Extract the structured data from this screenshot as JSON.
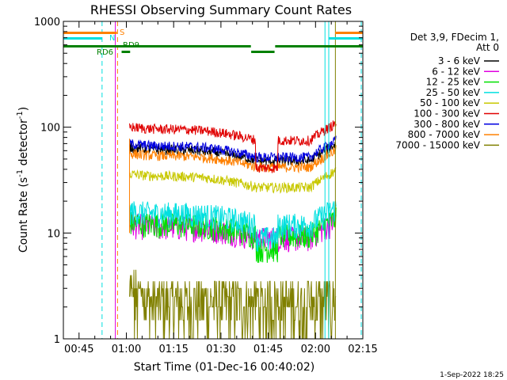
{
  "chart_data": {
    "type": "line",
    "title": "RHESSI Observing Summary Count Rates",
    "xlabel": "Start Time (01-Dec-16 00:40:02)",
    "ylabel_main": "Count Rate (s",
    "ylabel_sup1": "-1",
    "ylabel_mid": " detector",
    "ylabel_sup2": "-1",
    "ylabel_end": ")",
    "yscale": "log",
    "ylim": [
      1,
      1000
    ],
    "xlim_minutes": [
      40.03,
      135
    ],
    "x_ticks": [
      {
        "label": "00:45",
        "min": 45
      },
      {
        "label": "01:00",
        "min": 60
      },
      {
        "label": "01:15",
        "min": 75
      },
      {
        "label": "01:30",
        "min": 90
      },
      {
        "label": "01:45",
        "min": 105
      },
      {
        "label": "02:00",
        "min": 120
      },
      {
        "label": "02:15",
        "min": 135
      }
    ],
    "y_ticks": [
      {
        "label": "1",
        "v": 1
      },
      {
        "label": "10",
        "v": 10
      },
      {
        "label": "100",
        "v": 100
      },
      {
        "label": "1000",
        "v": 1000
      }
    ],
    "legend_header": [
      "Det 3,9, FDecim 1,",
      "Att 0"
    ],
    "series": [
      {
        "name": "3 - 6 keV",
        "color": "#000000",
        "base": 48
      },
      {
        "name": "6 - 12 keV",
        "color": "#e000e0",
        "base": 9
      },
      {
        "name": "12 - 25 keV",
        "color": "#00e000",
        "base": 9.5
      },
      {
        "name": "25 - 50 keV",
        "color": "#00e0e0",
        "base": 12
      },
      {
        "name": "50 - 100 keV",
        "color": "#c8c800",
        "base": 27
      },
      {
        "name": "100 - 300 keV",
        "color": "#e00000",
        "base": 75
      },
      {
        "name": "300 - 800 keV",
        "color": "#0000e0",
        "base": 52
      },
      {
        "name": "800 - 7000 keV",
        "color": "#ff8000",
        "base": 42
      },
      {
        "name": "7000 - 15000 keV",
        "color": "#808000",
        "base": 2.2
      }
    ],
    "flags": [
      {
        "label": "S",
        "color": "#ff8000"
      },
      {
        "label": "N",
        "color": "#00e0e0"
      },
      {
        "label": "RD6",
        "color": "#008000"
      },
      {
        "label": "RD9",
        "color": "#008000"
      }
    ],
    "timestamp": "1-Sep-2022 18:25"
  }
}
